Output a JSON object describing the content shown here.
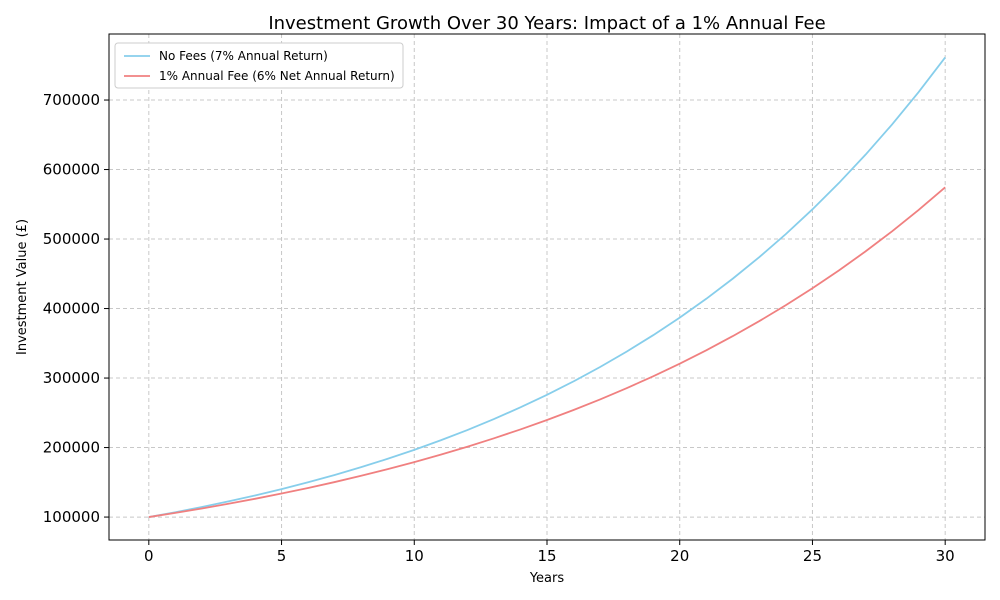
{
  "chart_data": {
    "type": "line",
    "title": "Investment Growth Over 30 Years: Impact of a 1% Annual Fee",
    "xlabel": "Years",
    "ylabel": "Investment Value (£)",
    "xlim": [
      -1.5,
      31.5
    ],
    "ylim": [
      67000,
      795000
    ],
    "xticks": [
      0,
      5,
      10,
      15,
      20,
      25,
      30
    ],
    "yticks": [
      100000,
      200000,
      300000,
      400000,
      500000,
      600000,
      700000
    ],
    "grid": true,
    "legend_position": "top-left",
    "x": [
      0,
      1,
      2,
      3,
      4,
      5,
      6,
      7,
      8,
      9,
      10,
      11,
      12,
      13,
      14,
      15,
      16,
      17,
      18,
      19,
      20,
      21,
      22,
      23,
      24,
      25,
      26,
      27,
      28,
      29,
      30
    ],
    "series": [
      {
        "name": "No Fees (7% Annual Return)",
        "color": "#87ceeb",
        "values": [
          100000,
          107000,
          114490,
          122504,
          131080,
          140255,
          150073,
          160578,
          171819,
          183846,
          196715,
          210485,
          225219,
          240985,
          257853,
          275903,
          295216,
          315882,
          337993,
          361653,
          386968,
          414056,
          443040,
          474053,
          507237,
          542743,
          580735,
          621387,
          664884,
          711426,
          761226
        ]
      },
      {
        "name": "1% Annual Fee (6% Net Annual Return)",
        "color": "#f08080",
        "values": [
          100000,
          106000,
          112360,
          119102,
          126248,
          133823,
          141852,
          150363,
          159385,
          168948,
          179085,
          189830,
          201220,
          213293,
          226090,
          239656,
          254035,
          269277,
          285434,
          302560,
          320714,
          339956,
          360354,
          381975,
          404893,
          429187,
          454938,
          482235,
          511169,
          541839,
          574349
        ]
      }
    ]
  }
}
